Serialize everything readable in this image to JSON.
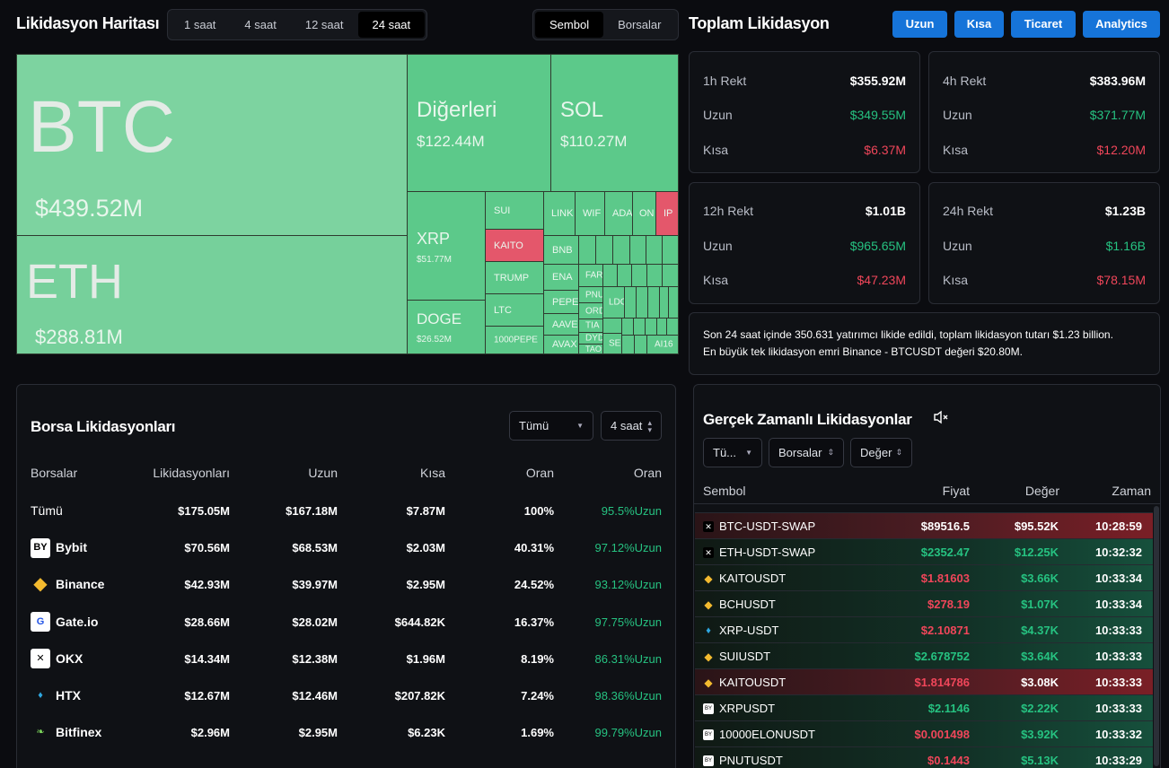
{
  "header": {
    "map_title": "Likidasyon Haritası",
    "timeframes": [
      "1 saat",
      "4 saat",
      "12 saat",
      "24 saat"
    ],
    "active_timeframe": "24 saat",
    "view_modes": [
      "Sembol",
      "Borsalar"
    ],
    "active_view": "Sembol",
    "total_title": "Toplam Likidasyon",
    "buttons": [
      "Uzun",
      "Kısa",
      "Ticaret",
      "Analytics"
    ],
    "accent": "#1674d9"
  },
  "treemap": {
    "colors": {
      "long": "#5cc98a",
      "short": "#e4576b"
    },
    "big": [
      {
        "name": "BTC",
        "value": "$439.52M"
      },
      {
        "name": "ETH",
        "value": "$288.81M"
      },
      {
        "name": "Diğerleri",
        "value": "$122.44M"
      },
      {
        "name": "SOL",
        "value": "$110.27M"
      },
      {
        "name": "XRP",
        "value": "$51.77M"
      },
      {
        "name": "DOGE",
        "value": "$26.52M"
      }
    ],
    "small": [
      "SUI",
      "KAITO",
      "TRUMP",
      "LTC",
      "1000PEPE",
      "LINK",
      "WIF",
      "ADA",
      "ON",
      "IP",
      "BNB",
      "ENA",
      "PEPE",
      "AAVE",
      "AVAX",
      "FAR",
      "PNU",
      "ORD",
      "TIA",
      "DYD",
      "TAO",
      "SEI",
      "LDO",
      "AI16"
    ]
  },
  "stats": [
    {
      "label": "1h Rekt",
      "total": "$355.92M",
      "long_label": "Uzun",
      "long": "$349.55M",
      "short_label": "Kısa",
      "short": "$6.37M"
    },
    {
      "label": "4h Rekt",
      "total": "$383.96M",
      "long_label": "Uzun",
      "long": "$371.77M",
      "short_label": "Kısa",
      "short": "$12.20M"
    },
    {
      "label": "12h Rekt",
      "total": "$1.01B",
      "long_label": "Uzun",
      "long": "$965.65M",
      "short_label": "Kısa",
      "short": "$47.23M"
    },
    {
      "label": "24h Rekt",
      "total": "$1.23B",
      "long_label": "Uzun",
      "long": "$1.16B",
      "short_label": "Kısa",
      "short": "$78.15M"
    }
  ],
  "summary": {
    "line1": "Son 24 saat içinde 350.631 yatırımcı likide edildi, toplam likidasyon tutarı $1.23 billion.",
    "line2": "En büyük tek likidasyon emri Binance - BTCUSDT değeri $20.80M."
  },
  "exchanges": {
    "title": "Borsa Likidasyonları",
    "filter": "Tümü",
    "period": "4 saat",
    "columns": [
      "Borsalar",
      "Likidasyonları",
      "Uzun",
      "Kısa",
      "Oran",
      "Oran"
    ],
    "rows": [
      {
        "name": "Tümü",
        "liq": "$175.05M",
        "long": "$167.18M",
        "short": "$7.87M",
        "ratio": "100%",
        "side": "95.5%Uzun",
        "logo": "none"
      },
      {
        "name": "Bybit",
        "liq": "$70.56M",
        "long": "$68.53M",
        "short": "$2.03M",
        "ratio": "40.31%",
        "side": "97.12%Uzun",
        "logo": "bybit"
      },
      {
        "name": "Binance",
        "liq": "$42.93M",
        "long": "$39.97M",
        "short": "$2.95M",
        "ratio": "24.52%",
        "side": "93.12%Uzun",
        "logo": "binance"
      },
      {
        "name": "Gate.io",
        "liq": "$28.66M",
        "long": "$28.02M",
        "short": "$644.82K",
        "ratio": "16.37%",
        "side": "97.75%Uzun",
        "logo": "gate"
      },
      {
        "name": "OKX",
        "liq": "$14.34M",
        "long": "$12.38M",
        "short": "$1.96M",
        "ratio": "8.19%",
        "side": "86.31%Uzun",
        "logo": "okx"
      },
      {
        "name": "HTX",
        "liq": "$12.67M",
        "long": "$12.46M",
        "short": "$207.82K",
        "ratio": "7.24%",
        "side": "98.36%Uzun",
        "logo": "htx"
      },
      {
        "name": "Bitfinex",
        "liq": "$2.96M",
        "long": "$2.95M",
        "short": "$6.23K",
        "ratio": "1.69%",
        "side": "99.79%Uzun",
        "logo": "bitfinex"
      }
    ]
  },
  "realtime": {
    "title": "Gerçek Zamanlı Likidasyonlar",
    "filters": [
      "Tü...",
      "Borsalar",
      "Değer"
    ],
    "columns": [
      "Sembol",
      "Fiyat",
      "Değer",
      "Zaman"
    ],
    "rows": [
      {
        "symbol": "BTC-USDT-SWAP",
        "price": "$89516.5",
        "value": "$95.52K",
        "time": "10:28:59",
        "side": "short",
        "logo": "okx",
        "highlight": "red"
      },
      {
        "symbol": "ETH-USDT-SWAP",
        "price": "$2352.47",
        "value": "$12.25K",
        "time": "10:32:32",
        "side": "long",
        "logo": "okx",
        "highlight": "green"
      },
      {
        "symbol": "KAITOUSDT",
        "price": "$1.81603",
        "value": "$3.66K",
        "time": "10:33:34",
        "side": "short",
        "logo": "binance",
        "highlight": "green"
      },
      {
        "symbol": "BCHUSDT",
        "price": "$278.19",
        "value": "$1.07K",
        "time": "10:33:34",
        "side": "short",
        "logo": "binance",
        "highlight": "green"
      },
      {
        "symbol": "XRP-USDT",
        "price": "$2.10871",
        "value": "$4.37K",
        "time": "10:33:33",
        "side": "short",
        "logo": "htx",
        "highlight": "green"
      },
      {
        "symbol": "SUIUSDT",
        "price": "$2.678752",
        "value": "$3.64K",
        "time": "10:33:33",
        "side": "long",
        "logo": "binance",
        "highlight": "green"
      },
      {
        "symbol": "KAITOUSDT",
        "price": "$1.814786",
        "value": "$3.08K",
        "time": "10:33:33",
        "side": "short",
        "logo": "binance",
        "highlight": "red"
      },
      {
        "symbol": "XRPUSDT",
        "price": "$2.1146",
        "value": "$2.22K",
        "time": "10:33:33",
        "side": "long",
        "logo": "bybit",
        "highlight": "green"
      },
      {
        "symbol": "10000ELONUSDT",
        "price": "$0.001498",
        "value": "$3.92K",
        "time": "10:33:32",
        "side": "short",
        "logo": "bybit",
        "highlight": "green"
      },
      {
        "symbol": "PNUTUSDT",
        "price": "$0.1443",
        "value": "$5.13K",
        "time": "10:33:29",
        "side": "short",
        "logo": "bybit",
        "highlight": "green"
      }
    ]
  }
}
